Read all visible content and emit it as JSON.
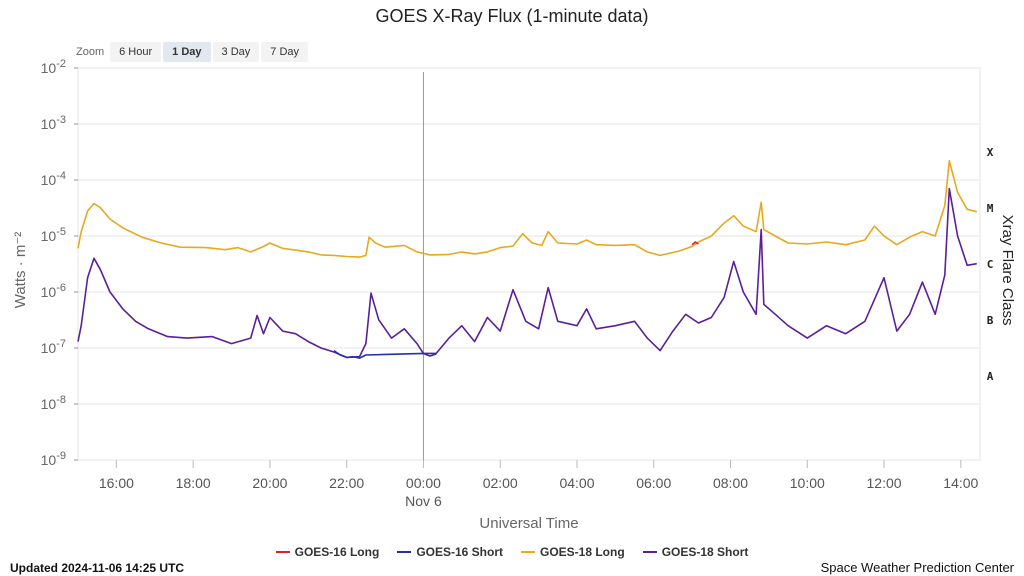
{
  "zoom": {
    "label": "Zoom",
    "options": [
      "6 Hour",
      "1 Day",
      "3 Day",
      "7 Day"
    ],
    "selected": "1 Day"
  },
  "updated": "Updated 2024-11-06 14:25 UTC",
  "credit": "Space Weather Prediction Center",
  "chart_data": {
    "type": "line",
    "title": "GOES X-Ray Flux (1-minute data)",
    "xlabel": "Universal Time",
    "ylabel": "Watts · m⁻²",
    "y2label": "Xray Flare Class",
    "yscale": "log",
    "ylim": [
      1e-09,
      0.01
    ],
    "xlim": [
      "2024-11-05 15:00",
      "2024-11-06 14:30"
    ],
    "y_tick_labels": [
      {
        "base": "10",
        "exp": "-2",
        "value": 0.01
      },
      {
        "base": "10",
        "exp": "-3",
        "value": 0.001
      },
      {
        "base": "10",
        "exp": "-4",
        "value": 0.0001
      },
      {
        "base": "10",
        "exp": "-5",
        "value": 1e-05
      },
      {
        "base": "10",
        "exp": "-6",
        "value": 1e-06
      },
      {
        "base": "10",
        "exp": "-7",
        "value": 1e-07
      },
      {
        "base": "10",
        "exp": "-8",
        "value": 1e-08
      },
      {
        "base": "10",
        "exp": "-9",
        "value": 1e-09
      }
    ],
    "x_ticks": [
      {
        "label": "16:00",
        "t": "2024-11-05 16:00"
      },
      {
        "label": "18:00",
        "t": "2024-11-05 18:00"
      },
      {
        "label": "20:00",
        "t": "2024-11-05 20:00"
      },
      {
        "label": "22:00",
        "t": "2024-11-05 22:00"
      },
      {
        "label": "00:00",
        "sublabel": "Nov 6",
        "t": "2024-11-06 00:00"
      },
      {
        "label": "02:00",
        "t": "2024-11-06 02:00"
      },
      {
        "label": "04:00",
        "t": "2024-11-06 04:00"
      },
      {
        "label": "06:00",
        "t": "2024-11-06 06:00"
      },
      {
        "label": "08:00",
        "t": "2024-11-06 08:00"
      },
      {
        "label": "10:00",
        "t": "2024-11-06 10:00"
      },
      {
        "label": "12:00",
        "t": "2024-11-06 12:00"
      },
      {
        "label": "14:00",
        "t": "2024-11-06 14:00"
      }
    ],
    "day_marker": "2024-11-06 00:00",
    "flare_classes": [
      {
        "label": "X",
        "value": 0.000316
      },
      {
        "label": "M",
        "value": 3.16e-05
      },
      {
        "label": "C",
        "value": 3.16e-06
      },
      {
        "label": "B",
        "value": 3.16e-07
      },
      {
        "label": "A",
        "value": 3.16e-08
      }
    ],
    "series": [
      {
        "name": "GOES-16 Long",
        "color": "#dd2222",
        "points": [
          [
            "2024-11-06 07:00",
            7e-06
          ],
          [
            "2024-11-06 07:05",
            7.8e-06
          ],
          [
            "2024-11-06 07:10",
            7.2e-06
          ]
        ]
      },
      {
        "name": "GOES-16 Short",
        "color": "#2233aa",
        "points": [
          [
            "2024-11-05 21:40",
            9e-08
          ],
          [
            "2024-11-05 21:50",
            7.5e-08
          ],
          [
            "2024-11-05 22:00",
            6.8e-08
          ],
          [
            "2024-11-05 22:10",
            7e-08
          ],
          [
            "2024-11-05 22:20",
            6.6e-08
          ],
          [
            "2024-11-05 22:30",
            7.5e-08
          ],
          [
            "2024-11-06 00:00",
            8e-08
          ],
          [
            "2024-11-06 00:10",
            7.2e-08
          ],
          [
            "2024-11-06 00:20",
            7.8e-08
          ]
        ]
      },
      {
        "name": "GOES-18 Long",
        "color": "#e8a820",
        "points": [
          [
            "2024-11-05 15:00",
            6e-06
          ],
          [
            "2024-11-05 15:05",
            1.2e-05
          ],
          [
            "2024-11-05 15:15",
            2.8e-05
          ],
          [
            "2024-11-05 15:25",
            3.8e-05
          ],
          [
            "2024-11-05 15:35",
            3.2e-05
          ],
          [
            "2024-11-05 15:50",
            2e-05
          ],
          [
            "2024-11-05 16:10",
            1.4e-05
          ],
          [
            "2024-11-05 16:40",
            9.5e-06
          ],
          [
            "2024-11-05 17:10",
            7.5e-06
          ],
          [
            "2024-11-05 17:40",
            6.3e-06
          ],
          [
            "2024-11-05 18:20",
            6.2e-06
          ],
          [
            "2024-11-05 18:50",
            5.7e-06
          ],
          [
            "2024-11-05 19:10",
            6.2e-06
          ],
          [
            "2024-11-05 19:30",
            5.2e-06
          ],
          [
            "2024-11-05 19:50",
            6.5e-06
          ],
          [
            "2024-11-05 20:00",
            7.5e-06
          ],
          [
            "2024-11-05 20:20",
            6e-06
          ],
          [
            "2024-11-05 20:40",
            5.6e-06
          ],
          [
            "2024-11-05 21:00",
            5.2e-06
          ],
          [
            "2024-11-05 21:20",
            4.6e-06
          ],
          [
            "2024-11-05 21:40",
            4.5e-06
          ],
          [
            "2024-11-05 22:00",
            4.3e-06
          ],
          [
            "2024-11-05 22:20",
            4.2e-06
          ],
          [
            "2024-11-05 22:30",
            4.5e-06
          ],
          [
            "2024-11-05 22:35",
            9.5e-06
          ],
          [
            "2024-11-05 22:45",
            7.5e-06
          ],
          [
            "2024-11-05 23:00",
            6.3e-06
          ],
          [
            "2024-11-05 23:30",
            6.8e-06
          ],
          [
            "2024-11-05 23:50",
            5.2e-06
          ],
          [
            "2024-11-06 00:10",
            4.6e-06
          ],
          [
            "2024-11-06 00:40",
            4.7e-06
          ],
          [
            "2024-11-06 01:00",
            5.2e-06
          ],
          [
            "2024-11-06 01:20",
            4.8e-06
          ],
          [
            "2024-11-06 01:40",
            5.2e-06
          ],
          [
            "2024-11-06 02:00",
            6.2e-06
          ],
          [
            "2024-11-06 02:20",
            6.6e-06
          ],
          [
            "2024-11-06 02:35",
            1.1e-05
          ],
          [
            "2024-11-06 02:50",
            7.5e-06
          ],
          [
            "2024-11-06 03:05",
            6.8e-06
          ],
          [
            "2024-11-06 03:15",
            1.2e-05
          ],
          [
            "2024-11-06 03:30",
            7.5e-06
          ],
          [
            "2024-11-06 04:00",
            7.2e-06
          ],
          [
            "2024-11-06 04:15",
            8.5e-06
          ],
          [
            "2024-11-06 04:30",
            7e-06
          ],
          [
            "2024-11-06 05:00",
            6.8e-06
          ],
          [
            "2024-11-06 05:30",
            7e-06
          ],
          [
            "2024-11-06 05:50",
            5.2e-06
          ],
          [
            "2024-11-06 06:10",
            4.5e-06
          ],
          [
            "2024-11-06 06:40",
            5.4e-06
          ],
          [
            "2024-11-06 07:00",
            6.5e-06
          ],
          [
            "2024-11-06 07:10",
            7.8e-06
          ],
          [
            "2024-11-06 07:30",
            1e-05
          ],
          [
            "2024-11-06 07:50",
            1.7e-05
          ],
          [
            "2024-11-06 08:05",
            2.3e-05
          ],
          [
            "2024-11-06 08:20",
            1.5e-05
          ],
          [
            "2024-11-06 08:40",
            1.2e-05
          ],
          [
            "2024-11-06 08:48",
            4e-05
          ],
          [
            "2024-11-06 08:52",
            1.3e-05
          ],
          [
            "2024-11-06 09:10",
            1e-05
          ],
          [
            "2024-11-06 09:30",
            7.5e-06
          ],
          [
            "2024-11-06 10:00",
            7.2e-06
          ],
          [
            "2024-11-06 10:30",
            7.8e-06
          ],
          [
            "2024-11-06 11:00",
            7e-06
          ],
          [
            "2024-11-06 11:30",
            8.5e-06
          ],
          [
            "2024-11-06 11:45",
            1.5e-05
          ],
          [
            "2024-11-06 12:00",
            1e-05
          ],
          [
            "2024-11-06 12:20",
            7e-06
          ],
          [
            "2024-11-06 12:40",
            9.5e-06
          ],
          [
            "2024-11-06 13:00",
            1.2e-05
          ],
          [
            "2024-11-06 13:20",
            1e-05
          ],
          [
            "2024-11-06 13:35",
            3.5e-05
          ],
          [
            "2024-11-06 13:42",
            0.00022
          ],
          [
            "2024-11-06 13:55",
            6e-05
          ],
          [
            "2024-11-06 14:10",
            3e-05
          ],
          [
            "2024-11-06 14:25",
            2.7e-05
          ]
        ]
      },
      {
        "name": "GOES-18 Short",
        "color": "#5a1f9a",
        "points": [
          [
            "2024-11-05 15:00",
            1.3e-07
          ],
          [
            "2024-11-05 15:05",
            2.5e-07
          ],
          [
            "2024-11-05 15:15",
            1.8e-06
          ],
          [
            "2024-11-05 15:25",
            4e-06
          ],
          [
            "2024-11-05 15:35",
            2.5e-06
          ],
          [
            "2024-11-05 15:50",
            1e-06
          ],
          [
            "2024-11-05 16:10",
            5e-07
          ],
          [
            "2024-11-05 16:30",
            3e-07
          ],
          [
            "2024-11-05 16:50",
            2.2e-07
          ],
          [
            "2024-11-05 17:20",
            1.6e-07
          ],
          [
            "2024-11-05 17:50",
            1.5e-07
          ],
          [
            "2024-11-05 18:30",
            1.6e-07
          ],
          [
            "2024-11-05 19:00",
            1.2e-07
          ],
          [
            "2024-11-05 19:30",
            1.5e-07
          ],
          [
            "2024-11-05 19:40",
            3.8e-07
          ],
          [
            "2024-11-05 19:50",
            1.8e-07
          ],
          [
            "2024-11-05 20:00",
            3.5e-07
          ],
          [
            "2024-11-05 20:20",
            2e-07
          ],
          [
            "2024-11-05 20:40",
            1.8e-07
          ],
          [
            "2024-11-05 21:00",
            1.3e-07
          ],
          [
            "2024-11-05 21:20",
            1e-07
          ],
          [
            "2024-11-05 21:40",
            8.5e-08
          ],
          [
            "2024-11-05 22:00",
            6.8e-08
          ],
          [
            "2024-11-05 22:20",
            7e-08
          ],
          [
            "2024-11-05 22:30",
            1.2e-07
          ],
          [
            "2024-11-05 22:38",
            9.5e-07
          ],
          [
            "2024-11-05 22:50",
            3.2e-07
          ],
          [
            "2024-11-05 23:10",
            1.5e-07
          ],
          [
            "2024-11-05 23:30",
            2.2e-07
          ],
          [
            "2024-11-05 23:50",
            1.2e-07
          ],
          [
            "2024-11-06 00:00",
            8e-08
          ],
          [
            "2024-11-06 00:20",
            8e-08
          ],
          [
            "2024-11-06 00:40",
            1.5e-07
          ],
          [
            "2024-11-06 01:00",
            2.5e-07
          ],
          [
            "2024-11-06 01:20",
            1.3e-07
          ],
          [
            "2024-11-06 01:40",
            3.5e-07
          ],
          [
            "2024-11-06 02:00",
            2e-07
          ],
          [
            "2024-11-06 02:20",
            1.1e-06
          ],
          [
            "2024-11-06 02:40",
            3e-07
          ],
          [
            "2024-11-06 03:00",
            2.2e-07
          ],
          [
            "2024-11-06 03:15",
            1.2e-06
          ],
          [
            "2024-11-06 03:30",
            3e-07
          ],
          [
            "2024-11-06 04:00",
            2.5e-07
          ],
          [
            "2024-11-06 04:15",
            5e-07
          ],
          [
            "2024-11-06 04:30",
            2.2e-07
          ],
          [
            "2024-11-06 05:00",
            2.5e-07
          ],
          [
            "2024-11-06 05:30",
            3e-07
          ],
          [
            "2024-11-06 05:50",
            1.5e-07
          ],
          [
            "2024-11-06 06:10",
            9e-08
          ],
          [
            "2024-11-06 06:30",
            2e-07
          ],
          [
            "2024-11-06 06:50",
            4e-07
          ],
          [
            "2024-11-06 07:10",
            2.8e-07
          ],
          [
            "2024-11-06 07:30",
            3.5e-07
          ],
          [
            "2024-11-06 07:50",
            8e-07
          ],
          [
            "2024-11-06 08:05",
            3.5e-06
          ],
          [
            "2024-11-06 08:20",
            1e-06
          ],
          [
            "2024-11-06 08:40",
            4e-07
          ],
          [
            "2024-11-06 08:48",
            1.3e-05
          ],
          [
            "2024-11-06 08:52",
            6e-07
          ],
          [
            "2024-11-06 09:10",
            4e-07
          ],
          [
            "2024-11-06 09:30",
            2.5e-07
          ],
          [
            "2024-11-06 10:00",
            1.5e-07
          ],
          [
            "2024-11-06 10:30",
            2.5e-07
          ],
          [
            "2024-11-06 11:00",
            1.8e-07
          ],
          [
            "2024-11-06 11:30",
            3e-07
          ],
          [
            "2024-11-06 12:00",
            1.8e-06
          ],
          [
            "2024-11-06 12:20",
            2e-07
          ],
          [
            "2024-11-06 12:40",
            4e-07
          ],
          [
            "2024-11-06 13:00",
            1.5e-06
          ],
          [
            "2024-11-06 13:20",
            4e-07
          ],
          [
            "2024-11-06 13:35",
            2e-06
          ],
          [
            "2024-11-06 13:42",
            7e-05
          ],
          [
            "2024-11-06 13:55",
            1e-05
          ],
          [
            "2024-11-06 14:10",
            3e-06
          ],
          [
            "2024-11-06 14:25",
            3.2e-06
          ]
        ]
      }
    ]
  }
}
